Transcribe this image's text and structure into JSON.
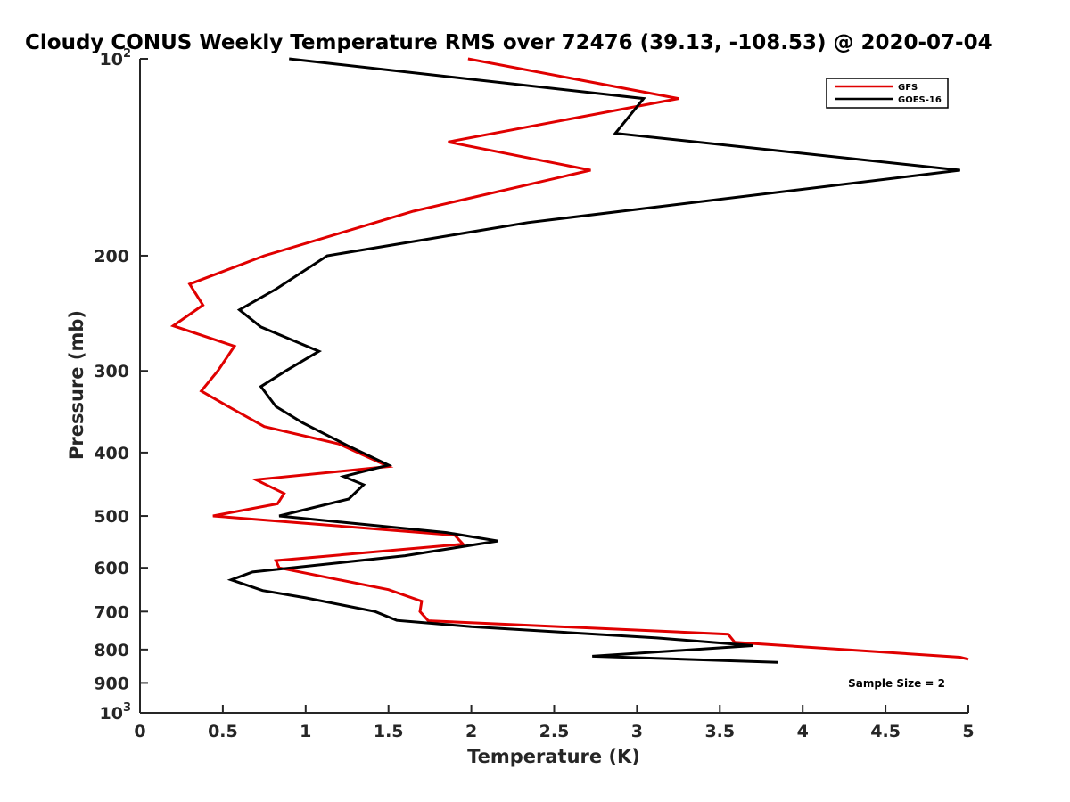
{
  "chart_data": {
    "type": "line",
    "title": "Cloudy CONUS Weekly Temperature RMS over 72476 (39.13, -108.53) @ 2020-07-04",
    "xlabel": "Temperature (K)",
    "ylabel": "Pressure (mb)",
    "xlim": [
      0,
      5
    ],
    "ylim": [
      100,
      1000
    ],
    "y_scale": "log",
    "y_reversed": true,
    "x_ticks": [
      "0",
      "0.5",
      "1",
      "1.5",
      "2",
      "2.5",
      "3",
      "3.5",
      "4",
      "4.5",
      "5"
    ],
    "y_ticks": [
      {
        "value": 100,
        "base": "10",
        "exp": "2"
      },
      {
        "value": 200,
        "label": "200"
      },
      {
        "value": 300,
        "label": "300"
      },
      {
        "value": 400,
        "label": "400"
      },
      {
        "value": 500,
        "label": "500"
      },
      {
        "value": 600,
        "label": "600"
      },
      {
        "value": 700,
        "label": "700"
      },
      {
        "value": 800,
        "label": "800"
      },
      {
        "value": 900,
        "label": "900"
      },
      {
        "value": 1000,
        "base": "10",
        "exp": "3"
      }
    ],
    "grid": false,
    "legend_position": "top-right",
    "annotation": "Sample Size = 2",
    "series": [
      {
        "name": "GFS",
        "color": "#e00000",
        "points": [
          [
            1.98,
            100
          ],
          [
            3.25,
            115
          ],
          [
            1.86,
            134
          ],
          [
            2.72,
            148
          ],
          [
            1.65,
            171
          ],
          [
            0.75,
            200
          ],
          [
            0.3,
            221
          ],
          [
            0.38,
            238
          ],
          [
            0.2,
            256
          ],
          [
            0.57,
            275
          ],
          [
            0.47,
            300
          ],
          [
            0.37,
            322
          ],
          [
            0.55,
            342
          ],
          [
            0.75,
            365
          ],
          [
            1.2,
            388
          ],
          [
            1.5,
            420
          ],
          [
            0.7,
            440
          ],
          [
            0.87,
            462
          ],
          [
            0.83,
            479
          ],
          [
            0.44,
            500
          ],
          [
            1.9,
            535
          ],
          [
            1.95,
            552
          ],
          [
            0.82,
            585
          ],
          [
            0.84,
            600
          ],
          [
            1.5,
            648
          ],
          [
            1.7,
            675
          ],
          [
            1.69,
            700
          ],
          [
            1.74,
            723
          ],
          [
            3.55,
            758
          ],
          [
            3.59,
            780
          ],
          [
            4.95,
            822
          ],
          [
            5.0,
            828
          ]
        ]
      },
      {
        "name": "GOES-16",
        "color": "#000000",
        "points": [
          [
            0.9,
            100
          ],
          [
            3.04,
            115
          ],
          [
            2.87,
            130
          ],
          [
            4.95,
            148
          ],
          [
            2.34,
            178
          ],
          [
            1.13,
            200
          ],
          [
            0.82,
            225
          ],
          [
            0.6,
            242
          ],
          [
            0.73,
            257
          ],
          [
            1.08,
            280
          ],
          [
            0.88,
            300
          ],
          [
            0.73,
            317
          ],
          [
            0.82,
            340
          ],
          [
            0.98,
            360
          ],
          [
            1.25,
            390
          ],
          [
            1.5,
            418
          ],
          [
            1.23,
            435
          ],
          [
            1.35,
            448
          ],
          [
            1.26,
            471
          ],
          [
            0.84,
            500
          ],
          [
            1.85,
            530
          ],
          [
            2.16,
            546
          ],
          [
            1.6,
            575
          ],
          [
            0.68,
            609
          ],
          [
            0.55,
            626
          ],
          [
            0.74,
            650
          ],
          [
            1.0,
            667
          ],
          [
            1.42,
            700
          ],
          [
            1.55,
            722
          ],
          [
            2.0,
            738
          ],
          [
            3.12,
            768
          ],
          [
            3.7,
            789
          ],
          [
            2.73,
            819
          ],
          [
            3.85,
            837
          ]
        ]
      }
    ]
  }
}
